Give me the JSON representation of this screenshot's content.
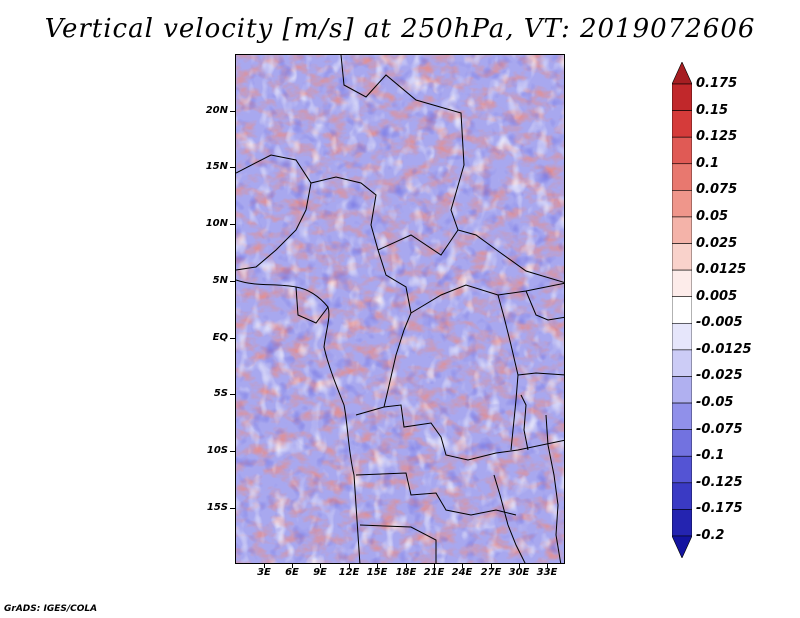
{
  "title": "Vertical velocity [m/s] at 250hPa, VT: 2019072606",
  "footer": "GrADS: IGES/COLA",
  "map": {
    "lat_labels": [
      "20N",
      "15N",
      "10N",
      "5N",
      "EQ",
      "5S",
      "10S",
      "15S"
    ],
    "lon_labels": [
      "3E",
      "6E",
      "9E",
      "12E",
      "15E",
      "18E",
      "21E",
      "24E",
      "27E",
      "30E",
      "33E"
    ]
  },
  "colorbar": {
    "labels": [
      "0.175",
      "0.15",
      "0.125",
      "0.1",
      "0.075",
      "0.05",
      "0.025",
      "0.0125",
      "0.005",
      "-0.005",
      "-0.0125",
      "-0.025",
      "-0.05",
      "-0.075",
      "-0.1",
      "-0.125",
      "-0.175",
      "-0.2"
    ],
    "colors": [
      "#a61e22",
      "#c1282b",
      "#d53b3a",
      "#e05a55",
      "#e8786f",
      "#ef968b",
      "#f4b3a9",
      "#f9d2cb",
      "#fdecea",
      "#ffffff",
      "#e6e6fb",
      "#ccccf6",
      "#b0b0f0",
      "#9090ea",
      "#7272e0",
      "#5454d4",
      "#3a3ac4",
      "#2424b0",
      "#1414a0"
    ]
  }
}
